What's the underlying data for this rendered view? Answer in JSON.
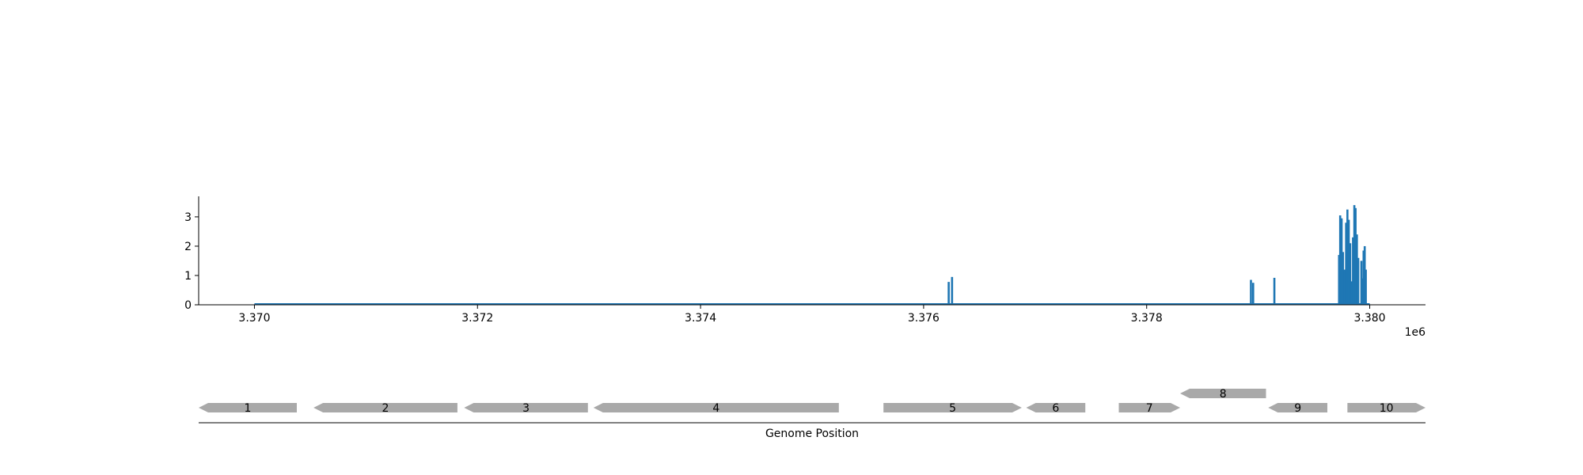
{
  "chart_data": [
    {
      "type": "area",
      "title": "",
      "xlabel": "",
      "ylabel": "",
      "x_offset_label": "1e6",
      "xlim": [
        3369500,
        3380500
      ],
      "ylim": [
        0,
        3.7
      ],
      "xticks": [
        3370000,
        3372000,
        3374000,
        3376000,
        3378000,
        3380000
      ],
      "xtick_labels": [
        "3.370",
        "3.372",
        "3.374",
        "3.376",
        "3.378",
        "3.380"
      ],
      "yticks": [
        0,
        1,
        2,
        3
      ],
      "ytick_labels": [
        "0",
        "1",
        "2",
        "3"
      ],
      "grid": false,
      "color": "#1f77b4",
      "baseline_range": [
        3370000,
        3380000
      ],
      "spikes": [
        {
          "x": 3376225,
          "y": 0.78
        },
        {
          "x": 3376255,
          "y": 0.95
        },
        {
          "x": 3378935,
          "y": 0.85
        },
        {
          "x": 3378955,
          "y": 0.75
        },
        {
          "x": 3379145,
          "y": 0.92
        },
        {
          "x": 3379725,
          "y": 1.7
        },
        {
          "x": 3379735,
          "y": 3.05
        },
        {
          "x": 3379748,
          "y": 2.95
        },
        {
          "x": 3379760,
          "y": 1.8
        },
        {
          "x": 3379775,
          "y": 1.2
        },
        {
          "x": 3379788,
          "y": 2.8
        },
        {
          "x": 3379800,
          "y": 3.25
        },
        {
          "x": 3379812,
          "y": 2.9
        },
        {
          "x": 3379825,
          "y": 2.1
        },
        {
          "x": 3379838,
          "y": 0.8
        },
        {
          "x": 3379850,
          "y": 2.3
        },
        {
          "x": 3379862,
          "y": 3.4
        },
        {
          "x": 3379873,
          "y": 3.3
        },
        {
          "x": 3379885,
          "y": 2.4
        },
        {
          "x": 3379897,
          "y": 1.6
        },
        {
          "x": 3379925,
          "y": 1.5
        },
        {
          "x": 3379935,
          "y": 0.9
        },
        {
          "x": 3379945,
          "y": 1.85
        },
        {
          "x": 3379955,
          "y": 2.0
        },
        {
          "x": 3379965,
          "y": 1.2
        }
      ]
    },
    {
      "type": "gene-track",
      "xlabel": "Genome Position",
      "xlim": [
        3369500,
        3380500
      ],
      "color": "#a9a9a9",
      "genes": [
        {
          "label": "1",
          "start": 3369500,
          "end": 3370380,
          "strand": -1,
          "row": 0
        },
        {
          "label": "2",
          "start": 3370530,
          "end": 3371820,
          "strand": -1,
          "row": 0
        },
        {
          "label": "3",
          "start": 3371880,
          "end": 3372990,
          "strand": -1,
          "row": 0
        },
        {
          "label": "4",
          "start": 3373040,
          "end": 3375240,
          "strand": -1,
          "row": 0
        },
        {
          "label": "5",
          "start": 3375640,
          "end": 3376880,
          "strand": 1,
          "row": 0
        },
        {
          "label": "6",
          "start": 3376920,
          "end": 3377450,
          "strand": -1,
          "row": 0
        },
        {
          "label": "7",
          "start": 3377750,
          "end": 3378300,
          "strand": 1,
          "row": 0
        },
        {
          "label": "8",
          "start": 3378300,
          "end": 3379070,
          "strand": -1,
          "row": 1
        },
        {
          "label": "9",
          "start": 3379090,
          "end": 3379620,
          "strand": -1,
          "row": 0
        },
        {
          "label": "10",
          "start": 3379800,
          "end": 3380500,
          "strand": 1,
          "row": 0
        }
      ]
    }
  ]
}
